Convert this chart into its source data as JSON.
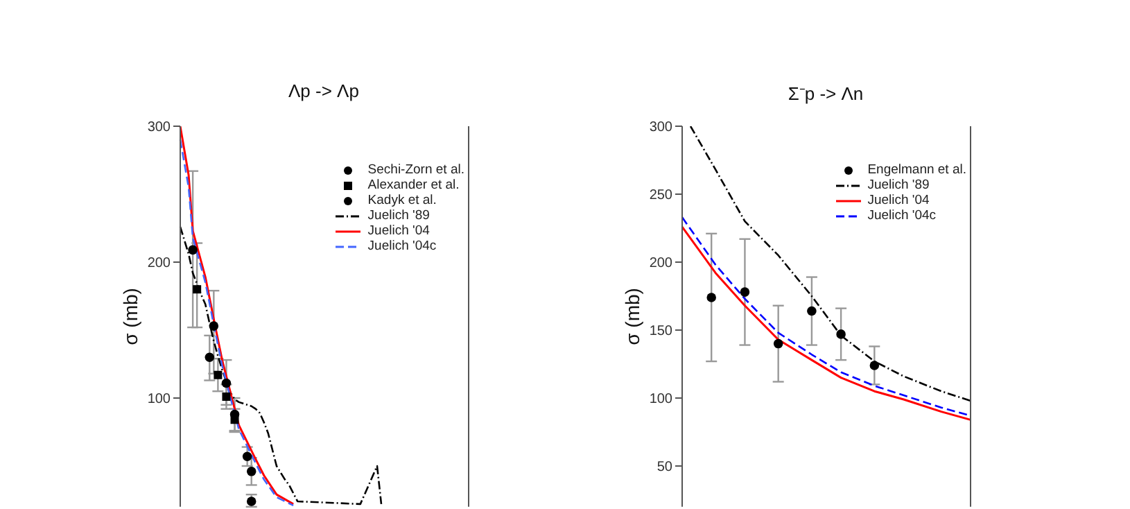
{
  "chart_data": [
    {
      "type": "line",
      "title": "Λp -> Λp",
      "ylabel": "σ (mb)",
      "categories": [
        null,
        null,
        null,
        null,
        null,
        null,
        null,
        null,
        null,
        null,
        null,
        null,
        null,
        null,
        null,
        null,
        null,
        null,
        null,
        null,
        null,
        null,
        null,
        null,
        null,
        null,
        null,
        null,
        null,
        null,
        null,
        null,
        null,
        null,
        null,
        null,
        null,
        null,
        null,
        null,
        null,
        null,
        null,
        null,
        null,
        null,
        null,
        null,
        null
      ],
      "ylim": [
        20,
        300
      ],
      "yticks": [
        100,
        200,
        300
      ],
      "legend": "top right",
      "series": [
        {
          "name": "Sechi-Zorn et al.",
          "type": "scatter",
          "marker": "circle",
          "color": "#000000",
          "values": [
            null,
            null,
            null,
            209,
            null,
            null,
            null,
            130,
            153,
            null,
            null,
            111,
            null,
            88,
            null,
            null,
            57,
            46,
            null,
            null,
            null,
            null,
            null,
            null,
            null,
            null,
            null,
            null,
            null,
            null,
            null,
            null,
            null,
            null,
            null,
            null,
            null,
            null,
            null,
            null,
            null,
            null,
            null,
            null,
            null,
            null,
            null,
            null,
            null
          ],
          "errors": [
            null,
            null,
            null,
            [
              152,
              267
            ],
            null,
            null,
            null,
            [
              113,
              146
            ],
            [
              118,
              179
            ],
            null,
            null,
            [
              95,
              128
            ],
            null,
            [
              75,
              100
            ],
            null,
            null,
            [
              50,
              64
            ],
            [
              36,
              56
            ],
            null,
            null,
            null,
            null,
            null,
            null,
            null,
            null,
            null,
            null,
            null,
            null,
            null,
            null,
            null,
            null,
            null,
            null,
            null,
            null,
            null,
            null,
            null,
            null,
            null,
            null,
            null,
            null,
            null,
            null,
            null
          ]
        },
        {
          "name": "Alexander et al.",
          "type": "scatter",
          "marker": "square",
          "color": "#000000",
          "values": [
            null,
            null,
            null,
            null,
            180,
            null,
            null,
            null,
            null,
            117,
            null,
            101,
            null,
            84,
            null,
            null,
            null,
            null,
            null,
            null,
            null,
            null,
            null,
            null,
            null,
            null,
            null,
            null,
            null,
            null,
            null,
            null,
            null,
            null,
            null,
            null,
            null,
            null,
            null,
            null,
            null,
            null,
            null,
            null,
            null,
            null,
            null,
            null,
            null
          ],
          "errors": [
            null,
            null,
            null,
            null,
            [
              152,
              214
            ],
            null,
            null,
            null,
            null,
            [
              105,
              129
            ],
            null,
            [
              92,
              110
            ],
            null,
            [
              76,
              92
            ],
            null,
            null,
            null,
            null,
            null,
            null,
            null,
            null,
            null,
            null,
            null,
            null,
            null,
            null,
            null,
            null,
            null,
            null,
            null,
            null,
            null,
            null,
            null,
            null,
            null,
            null,
            null,
            null,
            null,
            null,
            null,
            null,
            null,
            null,
            null
          ]
        },
        {
          "name": "Kadyk et al.",
          "type": "scatter",
          "marker": "circle",
          "color": "#000000",
          "values": [
            null,
            null,
            null,
            null,
            null,
            null,
            null,
            null,
            null,
            null,
            null,
            null,
            null,
            null,
            null,
            null,
            null,
            24,
            null,
            null,
            null,
            null,
            null,
            null,
            null,
            null,
            null,
            null,
            null,
            null,
            null,
            null,
            null,
            null,
            null,
            null,
            null,
            null,
            null,
            null,
            null,
            null,
            null,
            null,
            null,
            null,
            null,
            null,
            null
          ],
          "errors": [
            null,
            null,
            null,
            null,
            null,
            null,
            null,
            null,
            null,
            null,
            null,
            null,
            null,
            null,
            null,
            null,
            null,
            [
              20,
              29
            ],
            null,
            null,
            null,
            null,
            null,
            null,
            null,
            null,
            null,
            null,
            null,
            null,
            null,
            null,
            null,
            null,
            null,
            null,
            null,
            null,
            null,
            null,
            null,
            null,
            null,
            null,
            null,
            null,
            null,
            null,
            null
          ]
        },
        {
          "name": "Juelich '89",
          "line_style": "dashdot",
          "color": "#000000",
          "values": [
            226,
            216,
            206,
            192,
            184,
            176,
            169,
            155,
            142,
            131,
            121,
            112,
            104,
            99,
            97,
            96,
            95,
            94,
            92,
            89,
            82,
            74,
            62,
            50,
            45,
            40,
            36,
            30,
            24,
            null,
            null,
            null,
            null,
            null,
            null,
            null,
            null,
            null,
            null,
            null,
            null,
            null,
            null,
            22,
            29,
            36,
            43,
            50,
            22
          ]
        },
        {
          "name": "Juelich '04",
          "line_style": "solid",
          "color": "#ff0000",
          "values": [
            300,
            null,
            264,
            223,
            null,
            null,
            189,
            null,
            158,
            null,
            128,
            null,
            104,
            null,
            80,
            null,
            null,
            null,
            55,
            null,
            43,
            null,
            null,
            29,
            null,
            null,
            null,
            22,
            null,
            null,
            null,
            null,
            null,
            null,
            null,
            null,
            null,
            null,
            null,
            null,
            null,
            null,
            null,
            null,
            null,
            null,
            null,
            null,
            null
          ]
        },
        {
          "name": "Juelich '04c",
          "line_style": "dashed",
          "color": "#4466ff",
          "values": [
            290,
            null,
            255,
            218,
            null,
            null,
            185,
            null,
            154,
            null,
            124,
            null,
            100,
            null,
            77,
            null,
            null,
            null,
            52,
            null,
            40,
            null,
            null,
            27,
            null,
            null,
            null,
            21,
            null,
            null,
            null,
            null,
            null,
            null,
            null,
            null,
            null,
            null,
            null,
            null,
            null,
            null,
            null,
            null,
            null,
            null,
            null,
            null,
            null
          ]
        }
      ]
    },
    {
      "type": "line",
      "title": "Σ⁻p -> Λn",
      "ylabel": "σ (mb)",
      "categories": [
        null,
        null,
        null,
        null,
        null,
        null,
        null,
        null,
        null,
        null,
        null,
        null,
        null,
        null,
        null,
        null,
        null,
        null,
        null,
        null,
        null,
        null,
        null,
        null,
        null,
        null,
        null,
        null,
        null,
        null,
        null,
        null,
        null,
        null,
        null,
        null,
        null,
        null,
        null,
        null,
        null,
        null,
        null,
        null,
        null,
        null,
        null,
        null,
        null,
        null,
        null,
        null,
        null,
        null,
        null,
        null,
        null,
        null,
        null,
        null,
        null,
        null,
        null,
        null,
        null,
        null,
        null,
        null,
        null,
        null
      ],
      "ylim": [
        20,
        300
      ],
      "yticks": [
        50,
        100,
        150,
        200,
        250,
        300
      ],
      "legend": "top right",
      "series": [
        {
          "name": "Engelmann et al.",
          "type": "scatter",
          "marker": "circle",
          "color": "#000000",
          "values": [
            null,
            null,
            null,
            null,
            null,
            null,
            null,
            174,
            null,
            null,
            null,
            null,
            null,
            null,
            null,
            178,
            null,
            null,
            null,
            null,
            null,
            null,
            null,
            140,
            null,
            null,
            null,
            null,
            null,
            null,
            null,
            164,
            null,
            null,
            null,
            null,
            null,
            null,
            147,
            null,
            null,
            null,
            null,
            null,
            null,
            null,
            124,
            null,
            null,
            null,
            null,
            null,
            null,
            null,
            null,
            null,
            null,
            null,
            null,
            null,
            null,
            null,
            null,
            null,
            null,
            null,
            null,
            null,
            null,
            null
          ],
          "errors": [
            null,
            null,
            null,
            null,
            null,
            null,
            null,
            [
              127,
              221
            ],
            null,
            null,
            null,
            null,
            null,
            null,
            null,
            [
              139,
              217
            ],
            null,
            null,
            null,
            null,
            null,
            null,
            null,
            [
              112,
              168
            ],
            null,
            null,
            null,
            null,
            null,
            null,
            null,
            [
              139,
              189
            ],
            null,
            null,
            null,
            null,
            null,
            null,
            [
              128,
              166
            ],
            null,
            null,
            null,
            null,
            null,
            null,
            null,
            [
              110,
              138
            ],
            null,
            null,
            null,
            null,
            null,
            null,
            null,
            null,
            null,
            null,
            null,
            null,
            null,
            null,
            null,
            null,
            null,
            null,
            null,
            null,
            null,
            null,
            null
          ]
        },
        {
          "name": "Juelich '89",
          "line_style": "dashdot",
          "color": "#000000",
          "values": [
            null,
            null,
            300,
            null,
            null,
            null,
            null,
            null,
            268,
            null,
            null,
            null,
            null,
            null,
            null,
            230,
            null,
            null,
            null,
            null,
            null,
            null,
            null,
            205,
            null,
            null,
            null,
            null,
            null,
            null,
            null,
            175,
            null,
            null,
            null,
            null,
            null,
            null,
            146,
            null,
            null,
            null,
            null,
            null,
            null,
            null,
            127,
            null,
            null,
            null,
            null,
            null,
            null,
            116,
            null,
            null,
            null,
            null,
            null,
            null,
            null,
            null,
            105,
            null,
            null,
            null,
            null,
            null,
            null,
            98
          ]
        },
        {
          "name": "Juelich '04",
          "line_style": "solid",
          "color": "#ff0000",
          "values": [
            226,
            null,
            null,
            null,
            null,
            null,
            null,
            null,
            192,
            null,
            null,
            null,
            null,
            null,
            null,
            168,
            null,
            null,
            null,
            null,
            null,
            null,
            null,
            143,
            null,
            null,
            null,
            null,
            null,
            null,
            null,
            128,
            null,
            null,
            null,
            null,
            null,
            null,
            115,
            null,
            null,
            null,
            null,
            null,
            null,
            null,
            105,
            null,
            null,
            null,
            null,
            null,
            null,
            99,
            null,
            null,
            null,
            null,
            null,
            null,
            null,
            null,
            90,
            null,
            null,
            null,
            null,
            null,
            null,
            84
          ]
        },
        {
          "name": "Juelich '04c",
          "line_style": "dashed",
          "color": "#0000ff",
          "values": [
            233,
            null,
            null,
            null,
            null,
            null,
            null,
            null,
            198,
            null,
            null,
            null,
            null,
            null,
            null,
            173,
            null,
            null,
            null,
            null,
            null,
            null,
            null,
            148,
            null,
            null,
            null,
            null,
            null,
            null,
            null,
            132,
            null,
            null,
            null,
            null,
            null,
            null,
            119,
            null,
            null,
            null,
            null,
            null,
            null,
            null,
            109,
            null,
            null,
            null,
            null,
            null,
            null,
            102,
            null,
            null,
            null,
            null,
            null,
            null,
            null,
            null,
            93,
            null,
            null,
            null,
            null,
            null,
            null,
            87
          ]
        }
      ]
    }
  ]
}
